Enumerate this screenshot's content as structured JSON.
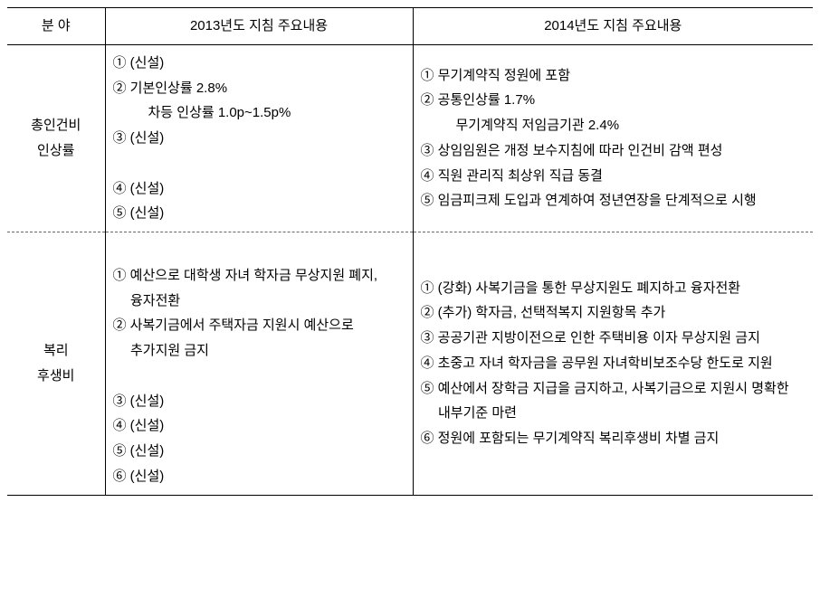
{
  "header": {
    "col1": "분    야",
    "col2": "2013년도 지침 주요내용",
    "col3": "2014년도 지침 주요내용"
  },
  "rows": {
    "labor": {
      "category": "총인건비\n인상률",
      "y2013": [
        "① (신설)",
        "② 기본인상률 2.8%",
        "    차등 인상률 1.0p~1.5p%",
        "③ (신설)",
        "",
        "④ (신설)",
        "⑤ (신설)"
      ],
      "y2014": [
        "① 무기계약직 정원에 포함",
        "② 공통인상률 1.7%",
        "    무기계약직 저임금기관 2.4%",
        "③ 상임임원은 개정 보수지침에 따라 인건비 감액 편성",
        "④ 직원 관리직 최상위 직급 동결",
        "⑤ 임금피크제 도입과 연계하여 정년연장을 단계적으로 시행"
      ]
    },
    "welfare": {
      "category": "복리\n후생비",
      "y2013": [
        "",
        "① 예산으로 대학생 자녀 학자금 무상지원 폐지, 융자전환",
        "② 사복기금에서 주택자금 지원시 예산으로 추가지원 금지",
        "",
        "③ (신설)",
        "④ (신설)",
        "⑤ (신설)",
        "⑥ (신설)"
      ],
      "y2014": [
        "① (강화) 사복기금을 통한 무상지원도 폐지하고 융자전환",
        "② (추가) 학자금, 선택적복지 지원항목 추가",
        "③ 공공기관 지방이전으로 인한 주택비용 이자 무상지원 금지",
        "④ 초중고 자녀 학자금을 공무원 자녀학비보조수당 한도로 지원",
        "⑤ 예산에서 장학금 지급을 금지하고, 사복기금으로 지원시 명확한 내부기준 마련",
        "⑥ 정원에 포함되는 무기계약직 복리후생비 차별 금지"
      ]
    }
  },
  "col_widths": {
    "c1": 108,
    "c2": 340,
    "c3": 442
  }
}
